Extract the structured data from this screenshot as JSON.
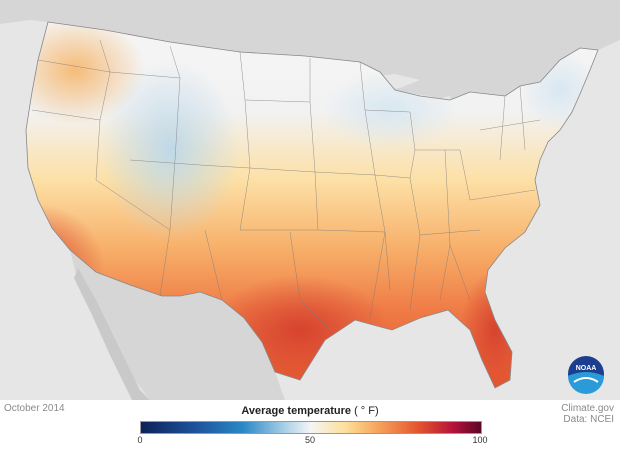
{
  "map": {
    "date": "October 2014",
    "legend": {
      "title": "Average temperature",
      "unit": "( ° F)",
      "ticks": [
        "0",
        "50",
        "100"
      ],
      "min": 0,
      "max": 100,
      "colors": [
        "#0c2158",
        "#2a88c6",
        "#f5f5f5",
        "#f6a25a",
        "#e2522d",
        "#5c0626"
      ]
    },
    "credit": {
      "source": "Climate.gov",
      "data": "Data: NCEI"
    },
    "logo": {
      "text": "NOAA",
      "icon": "noaa-logo"
    },
    "colors": {
      "land_outside": "#d8d8d8",
      "water": "#e6e6e6",
      "state_border": "#7a7a7a"
    }
  }
}
